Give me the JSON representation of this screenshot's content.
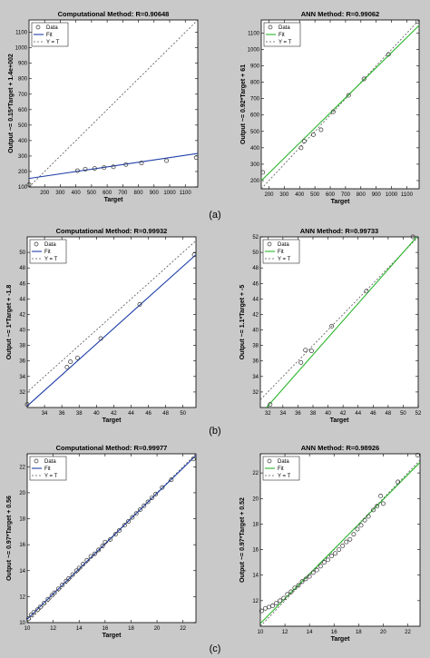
{
  "colors": {
    "page_background": "#c9c9c9",
    "plot_background": "#ffffff",
    "computational_fit": "#1f3fa8",
    "ann_fit": "#2bb52b",
    "identity_line": "#555555",
    "data_marker": "#333333"
  },
  "captions": [
    "(a)",
    "(b)",
    "(c)"
  ],
  "chart_data": [
    {
      "type": "scatter",
      "title": "Computational Method: R=0.90648",
      "xlabel": "Target",
      "ylabel": "Output ~= 0.15*Target + 1.4e+002",
      "xlim": [
        100,
        1180
      ],
      "ylim": [
        100,
        1180
      ],
      "xticks": [
        200,
        300,
        400,
        500,
        600,
        700,
        800,
        900,
        1000,
        1100
      ],
      "yticks": [
        100,
        200,
        300,
        400,
        500,
        600,
        700,
        800,
        900,
        1000,
        1100
      ],
      "legend": [
        "Data",
        "Fit",
        "Y = T"
      ],
      "legend_position": "top-left",
      "fit": {
        "slope": 0.15,
        "intercept": 140,
        "color": "#1f3fa8"
      },
      "points": {
        "x": [
          100,
          410,
          460,
          520,
          580,
          640,
          720,
          820,
          980,
          1170
        ],
        "y": [
          115,
          205,
          215,
          220,
          225,
          230,
          245,
          255,
          270,
          290
        ]
      }
    },
    {
      "type": "scatter",
      "title": "ANN Method: R=0.99062",
      "xlabel": "Target",
      "ylabel": "Output ~= 0.92*Target + 61",
      "xlim": [
        150,
        1180
      ],
      "ylim": [
        150,
        1180
      ],
      "xticks": [
        200,
        300,
        400,
        500,
        600,
        700,
        800,
        900,
        1000,
        1100
      ],
      "yticks": [
        200,
        300,
        400,
        500,
        600,
        700,
        800,
        900,
        1000,
        1100
      ],
      "legend": [
        "Data",
        "Fit",
        "Y = T"
      ],
      "legend_position": "top-left",
      "fit": {
        "slope": 0.92,
        "intercept": 61,
        "color": "#2bb52b"
      },
      "points": {
        "x": [
          160,
          410,
          430,
          490,
          540,
          620,
          720,
          820,
          980,
          1170
        ],
        "y": [
          250,
          400,
          440,
          480,
          510,
          620,
          720,
          820,
          970,
          1170
        ]
      }
    },
    {
      "type": "scatter",
      "title": "Computational Method: R=0.99932",
      "xlabel": "Target",
      "ylabel": "Output ~= 1*Target + -1.8",
      "xlim": [
        32,
        51.5
      ],
      "ylim": [
        30,
        52
      ],
      "xticks": [
        34,
        36,
        38,
        40,
        42,
        44,
        46,
        48,
        50
      ],
      "yticks": [
        32,
        34,
        36,
        38,
        40,
        42,
        44,
        46,
        48,
        50
      ],
      "legend": [
        "Data",
        "Fit",
        "Y = T"
      ],
      "legend_position": "top-left",
      "fit": {
        "slope": 1.0,
        "intercept": -1.8,
        "color": "#1f3fa8"
      },
      "points": {
        "x": [
          32,
          36.6,
          37,
          37.8,
          40.5,
          45,
          51.3
        ],
        "y": [
          30.4,
          35.2,
          35.9,
          36.4,
          38.9,
          43.3,
          49.7
        ]
      }
    },
    {
      "type": "scatter",
      "title": "ANN Method: R=0.99733",
      "xlabel": "Target",
      "ylabel": "Output ~= 1.1*Target + -5",
      "xlim": [
        31,
        52
      ],
      "ylim": [
        30,
        52
      ],
      "xticks": [
        32,
        34,
        36,
        38,
        40,
        42,
        44,
        46,
        48,
        50,
        52
      ],
      "yticks": [
        32,
        34,
        36,
        38,
        40,
        42,
        44,
        46,
        48,
        50,
        52
      ],
      "legend": [
        "Data",
        "Fit",
        "Y = T"
      ],
      "legend_position": "top-left",
      "fit": {
        "slope": 1.1,
        "intercept": -5,
        "color": "#2bb52b"
      },
      "points": {
        "x": [
          32.3,
          36.4,
          37,
          37.8,
          40.5,
          45.1,
          51.3
        ],
        "y": [
          30.4,
          35.8,
          37.4,
          37.3,
          40.5,
          45.0,
          52.0
        ]
      }
    },
    {
      "type": "scatter",
      "title": "Computational Method: R=0.99977",
      "xlabel": "Target",
      "ylabel": "Output ~= 0.97*Target + 0.56",
      "xlim": [
        10,
        23
      ],
      "ylim": [
        10,
        23
      ],
      "xticks": [
        10,
        12,
        14,
        16,
        18,
        20,
        22
      ],
      "yticks": [
        10,
        12,
        14,
        16,
        18,
        20,
        22
      ],
      "legend": [
        "Data",
        "Fit",
        "Y = T"
      ],
      "legend_position": "top-left",
      "fit": {
        "slope": 0.97,
        "intercept": 0.56,
        "color": "#1f3fa8"
      },
      "points": {
        "x": [
          10.1,
          10.3,
          10.5,
          10.8,
          11.0,
          11.3,
          11.6,
          11.9,
          12.1,
          12.4,
          12.7,
          13.0,
          13.2,
          13.5,
          13.8,
          14.0,
          14.3,
          14.6,
          14.9,
          15.2,
          15.5,
          15.8,
          16.0,
          16.4,
          16.8,
          17.1,
          17.5,
          17.8,
          18.1,
          18.4,
          18.7,
          19.0,
          19.3,
          19.6,
          19.9,
          20.4,
          21.1,
          22.8
        ],
        "y": [
          10.3,
          10.6,
          10.8,
          11.0,
          11.2,
          11.5,
          11.8,
          12.1,
          12.3,
          12.6,
          12.9,
          13.2,
          13.4,
          13.7,
          14.0,
          14.2,
          14.5,
          14.8,
          15.1,
          15.3,
          15.6,
          15.9,
          16.2,
          16.4,
          16.8,
          17.1,
          17.5,
          17.8,
          18.1,
          18.4,
          18.7,
          19.0,
          19.3,
          19.6,
          19.9,
          20.4,
          21.0,
          22.6
        ]
      }
    },
    {
      "type": "scatter",
      "title": "ANN Method: R=0.98926",
      "xlabel": "Target",
      "ylabel": "Output ~= 0.97*Target + 0.52",
      "xlim": [
        10,
        23
      ],
      "ylim": [
        10,
        23.5
      ],
      "xticks": [
        10,
        12,
        14,
        16,
        18,
        20,
        22
      ],
      "yticks": [
        12,
        14,
        16,
        18,
        20,
        22
      ],
      "legend": [
        "Data",
        "Fit",
        "Y = T"
      ],
      "legend_position": "top-left",
      "fit": {
        "slope": 0.97,
        "intercept": 0.52,
        "color": "#2bb52b"
      },
      "points": {
        "x": [
          10.1,
          10.4,
          10.7,
          11.0,
          11.3,
          11.6,
          11.9,
          12.2,
          12.5,
          12.8,
          13.1,
          13.4,
          13.7,
          14.0,
          14.3,
          14.6,
          14.9,
          15.2,
          15.5,
          15.8,
          16.1,
          16.4,
          16.7,
          17.0,
          17.3,
          17.6,
          17.9,
          18.2,
          18.5,
          18.8,
          19.2,
          19.5,
          19.8,
          20.0,
          21.2,
          22.8
        ],
        "y": [
          11.2,
          11.4,
          11.5,
          11.6,
          11.8,
          12.0,
          12.2,
          12.5,
          12.7,
          13.0,
          13.2,
          13.5,
          13.7,
          13.9,
          14.2,
          14.4,
          14.7,
          15.0,
          15.2,
          15.5,
          15.7,
          16.0,
          16.3,
          16.6,
          16.8,
          17.2,
          17.6,
          17.9,
          18.3,
          18.6,
          19.1,
          19.4,
          20.2,
          19.6,
          21.3,
          23.4
        ]
      }
    }
  ]
}
